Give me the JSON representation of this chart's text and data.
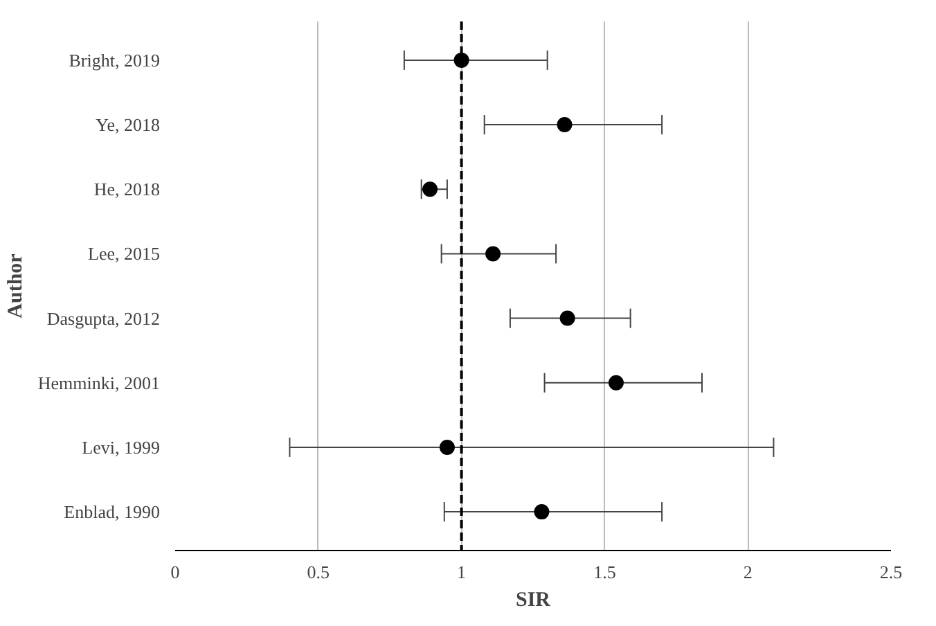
{
  "chart_data": {
    "type": "scatter",
    "orientation": "horizontal",
    "xlabel": "SIR",
    "ylabel": "Author",
    "categories": [
      "Bright, 2019",
      "Ye, 2018",
      "He, 2018",
      "Lee, 2015",
      "Dasgupta, 2012",
      "Hemminki, 2001",
      "Levi, 1999",
      "Enblad, 1990"
    ],
    "values": [
      1.0,
      1.36,
      0.89,
      1.11,
      1.37,
      1.54,
      0.95,
      1.28
    ],
    "errors": [
      [
        0.8,
        1.3
      ],
      [
        1.08,
        1.7
      ],
      [
        0.86,
        0.95
      ],
      [
        0.93,
        1.33
      ],
      [
        1.17,
        1.59
      ],
      [
        1.29,
        1.84
      ],
      [
        0.4,
        2.09
      ],
      [
        0.94,
        1.7
      ]
    ],
    "color": "#000000",
    "marker": "circle",
    "xlim": [
      0,
      2.5
    ],
    "xticks": [
      0,
      0.5,
      1,
      1.5,
      2,
      2.5
    ],
    "grid": "x",
    "ref_lines": [
      {
        "axis": "x",
        "value": 1,
        "label": null,
        "color": "#000000",
        "line_style": "dashed"
      }
    ]
  }
}
